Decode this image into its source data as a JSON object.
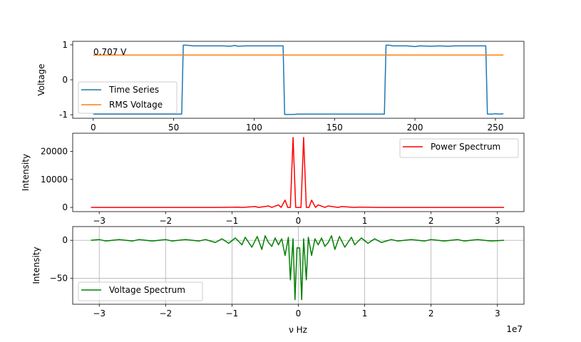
{
  "figure": {
    "offset_label": "1e7"
  },
  "chart_data": [
    {
      "type": "line",
      "ylabel": "Voltage",
      "xlim": [
        -12.75,
        267.75
      ],
      "ylim": [
        -1.1,
        1.1
      ],
      "xticks": [
        0,
        50,
        100,
        150,
        200,
        250
      ],
      "yticks": [
        -1,
        0,
        1
      ],
      "grid": false,
      "legend_position": "lower-left",
      "annotation": "0.707 V",
      "series": [
        {
          "name": "Time Series",
          "color": "#1f77b4",
          "points": [
            [
              0,
              -0.98
            ],
            [
              10,
              -0.98
            ],
            [
              20,
              -0.98
            ],
            [
              30,
              -0.98
            ],
            [
              40,
              -0.98
            ],
            [
              50,
              -0.98
            ],
            [
              55,
              -0.98
            ],
            [
              56,
              0.99
            ],
            [
              58,
              0.99
            ],
            [
              60,
              0.98
            ],
            [
              62,
              0.97
            ],
            [
              70,
              0.97
            ],
            [
              80,
              0.97
            ],
            [
              85,
              0.96
            ],
            [
              88,
              0.98
            ],
            [
              90,
              0.96
            ],
            [
              95,
              0.97
            ],
            [
              100,
              0.97
            ],
            [
              105,
              0.97
            ],
            [
              110,
              0.97
            ],
            [
              118,
              0.97
            ],
            [
              119,
              -0.99
            ],
            [
              125,
              -0.99
            ],
            [
              127,
              -0.98
            ],
            [
              135,
              -0.98
            ],
            [
              145,
              -0.98
            ],
            [
              155,
              -0.98
            ],
            [
              165,
              -0.98
            ],
            [
              175,
              -0.98
            ],
            [
              181,
              -0.98
            ],
            [
              182,
              0.99
            ],
            [
              184,
              0.99
            ],
            [
              186,
              0.97
            ],
            [
              195,
              0.97
            ],
            [
              200,
              0.95
            ],
            [
              203,
              0.97
            ],
            [
              210,
              0.96
            ],
            [
              215,
              0.97
            ],
            [
              220,
              0.96
            ],
            [
              225,
              0.97
            ],
            [
              230,
              0.97
            ],
            [
              235,
              0.97
            ],
            [
              244,
              0.97
            ],
            [
              245,
              -0.98
            ],
            [
              248,
              -0.98
            ],
            [
              250,
              -0.97
            ],
            [
              252,
              -0.98
            ],
            [
              255,
              -0.97
            ]
          ]
        },
        {
          "name": "RMS Voltage",
          "color": "#ff7f0e",
          "points": [
            [
              0,
              0.707
            ],
            [
              255,
              0.707
            ]
          ]
        }
      ]
    },
    {
      "type": "line",
      "ylabel": "Intensity",
      "xlim": [
        -3.4,
        3.4
      ],
      "ylim": [
        -1500,
        26500
      ],
      "xticks": [
        -3,
        -2,
        -1,
        0,
        1,
        2,
        3
      ],
      "xtick_labels": [
        "−3",
        "−2",
        "−1",
        "0",
        "1",
        "2",
        "3"
      ],
      "yticks": [
        0,
        10000,
        20000
      ],
      "grid": false,
      "legend_position": "upper-right",
      "series": [
        {
          "name": "Power Spectrum",
          "color": "#ff0000",
          "points": [
            [
              -3.125,
              0
            ],
            [
              -1.2,
              0
            ],
            [
              -0.9,
              100
            ],
            [
              -0.85,
              0
            ],
            [
              -0.65,
              300
            ],
            [
              -0.6,
              0
            ],
            [
              -0.45,
              500
            ],
            [
              -0.4,
              0
            ],
            [
              -0.3,
              900
            ],
            [
              -0.26,
              0
            ],
            [
              -0.2,
              2600
            ],
            [
              -0.16,
              0
            ],
            [
              -0.12,
              0
            ],
            [
              -0.08,
              25000
            ],
            [
              -0.04,
              0
            ],
            [
              0.04,
              0
            ],
            [
              0.08,
              25000
            ],
            [
              0.12,
              0
            ],
            [
              0.16,
              0
            ],
            [
              0.2,
              2600
            ],
            [
              0.26,
              0
            ],
            [
              0.3,
              900
            ],
            [
              0.4,
              0
            ],
            [
              0.45,
              500
            ],
            [
              0.6,
              0
            ],
            [
              0.65,
              300
            ],
            [
              0.85,
              0
            ],
            [
              0.9,
              100
            ],
            [
              1.2,
              0
            ],
            [
              3.1,
              0
            ]
          ]
        }
      ]
    },
    {
      "type": "line",
      "ylabel": "Intensity",
      "xlabel": "ν Hz",
      "xlim": [
        -3.4,
        3.4
      ],
      "ylim": [
        -84,
        18
      ],
      "xticks": [
        -3,
        -2,
        -1,
        0,
        1,
        2,
        3
      ],
      "xtick_labels": [
        "−3",
        "−2",
        "−1",
        "0",
        "1",
        "2",
        "3"
      ],
      "yticks": [
        -50,
        0
      ],
      "ytick_labels": [
        "−50",
        "0"
      ],
      "grid": true,
      "legend_position": "lower-left",
      "series": [
        {
          "name": "Voltage Spectrum",
          "color": "#008000",
          "points": [
            [
              -3.125,
              0
            ],
            [
              -3.0,
              1
            ],
            [
              -2.9,
              -1
            ],
            [
              -2.7,
              1
            ],
            [
              -2.5,
              -1
            ],
            [
              -2.4,
              1
            ],
            [
              -2.2,
              -1
            ],
            [
              -2.0,
              1
            ],
            [
              -1.9,
              -1
            ],
            [
              -1.7,
              1
            ],
            [
              -1.5,
              -1
            ],
            [
              -1.4,
              1
            ],
            [
              -1.25,
              -3
            ],
            [
              -1.15,
              2
            ],
            [
              -1.05,
              -4
            ],
            [
              -0.95,
              3
            ],
            [
              -0.85,
              -6
            ],
            [
              -0.8,
              4
            ],
            [
              -0.7,
              -9
            ],
            [
              -0.62,
              5
            ],
            [
              -0.55,
              -12
            ],
            [
              -0.5,
              6
            ],
            [
              -0.45,
              -3
            ],
            [
              -0.4,
              -8
            ],
            [
              -0.35,
              3
            ],
            [
              -0.3,
              -6
            ],
            [
              -0.25,
              2
            ],
            [
              -0.2,
              -20
            ],
            [
              -0.15,
              4
            ],
            [
              -0.12,
              -52
            ],
            [
              -0.08,
              2
            ],
            [
              -0.05,
              -78
            ],
            [
              -0.02,
              -10
            ],
            [
              0.02,
              -10
            ],
            [
              0.05,
              -78
            ],
            [
              0.08,
              2
            ],
            [
              0.12,
              -52
            ],
            [
              0.15,
              4
            ],
            [
              0.2,
              -20
            ],
            [
              0.25,
              2
            ],
            [
              0.3,
              -6
            ],
            [
              0.35,
              3
            ],
            [
              0.4,
              -8
            ],
            [
              0.45,
              -3
            ],
            [
              0.5,
              6
            ],
            [
              0.55,
              -12
            ],
            [
              0.62,
              5
            ],
            [
              0.7,
              -9
            ],
            [
              0.8,
              4
            ],
            [
              0.85,
              -6
            ],
            [
              0.95,
              3
            ],
            [
              1.05,
              -4
            ],
            [
              1.15,
              2
            ],
            [
              1.25,
              -3
            ],
            [
              1.4,
              1
            ],
            [
              1.5,
              -1
            ],
            [
              1.7,
              1
            ],
            [
              1.9,
              -1
            ],
            [
              2.0,
              1
            ],
            [
              2.2,
              -1
            ],
            [
              2.4,
              1
            ],
            [
              2.5,
              -1
            ],
            [
              2.7,
              1
            ],
            [
              2.9,
              -1
            ],
            [
              3.1,
              0
            ]
          ]
        }
      ]
    }
  ]
}
